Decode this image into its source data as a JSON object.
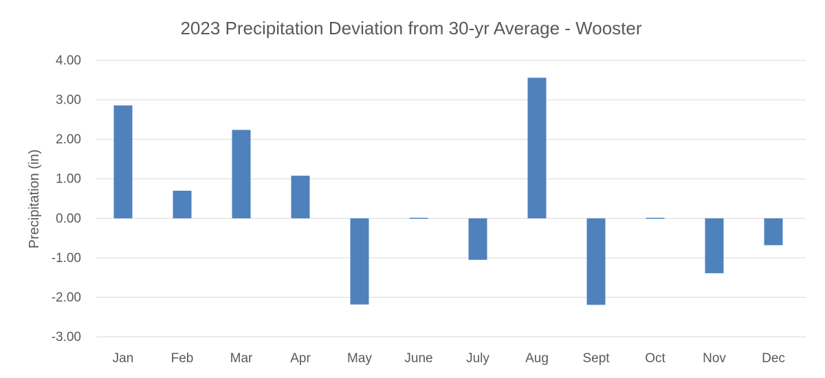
{
  "chart_data": {
    "type": "bar",
    "title": "2023 Precipitation Deviation from 30-yr Average - Wooster",
    "xlabel": "",
    "ylabel": "Precipitation (in)",
    "categories": [
      "Jan",
      "Feb",
      "Mar",
      "Apr",
      "May",
      "June",
      "July",
      "Aug",
      "Sept",
      "Oct",
      "Nov",
      "Dec"
    ],
    "values": [
      2.86,
      0.7,
      2.24,
      1.08,
      -2.18,
      0.01,
      -1.05,
      3.56,
      -2.19,
      0.01,
      -1.39,
      -0.68
    ],
    "ylim": [
      -3,
      4
    ],
    "yticks": [
      "4.00",
      "3.00",
      "2.00",
      "1.00",
      "0.00",
      "-1.00",
      "-2.00",
      "-3.00"
    ],
    "ytick_values": [
      4,
      3,
      2,
      1,
      0,
      -1,
      -2,
      -3
    ],
    "grid": true,
    "legend": "none",
    "bar_color": "#4f81bd",
    "grid_color": "#d9d9d9",
    "text_color": "#595959"
  }
}
